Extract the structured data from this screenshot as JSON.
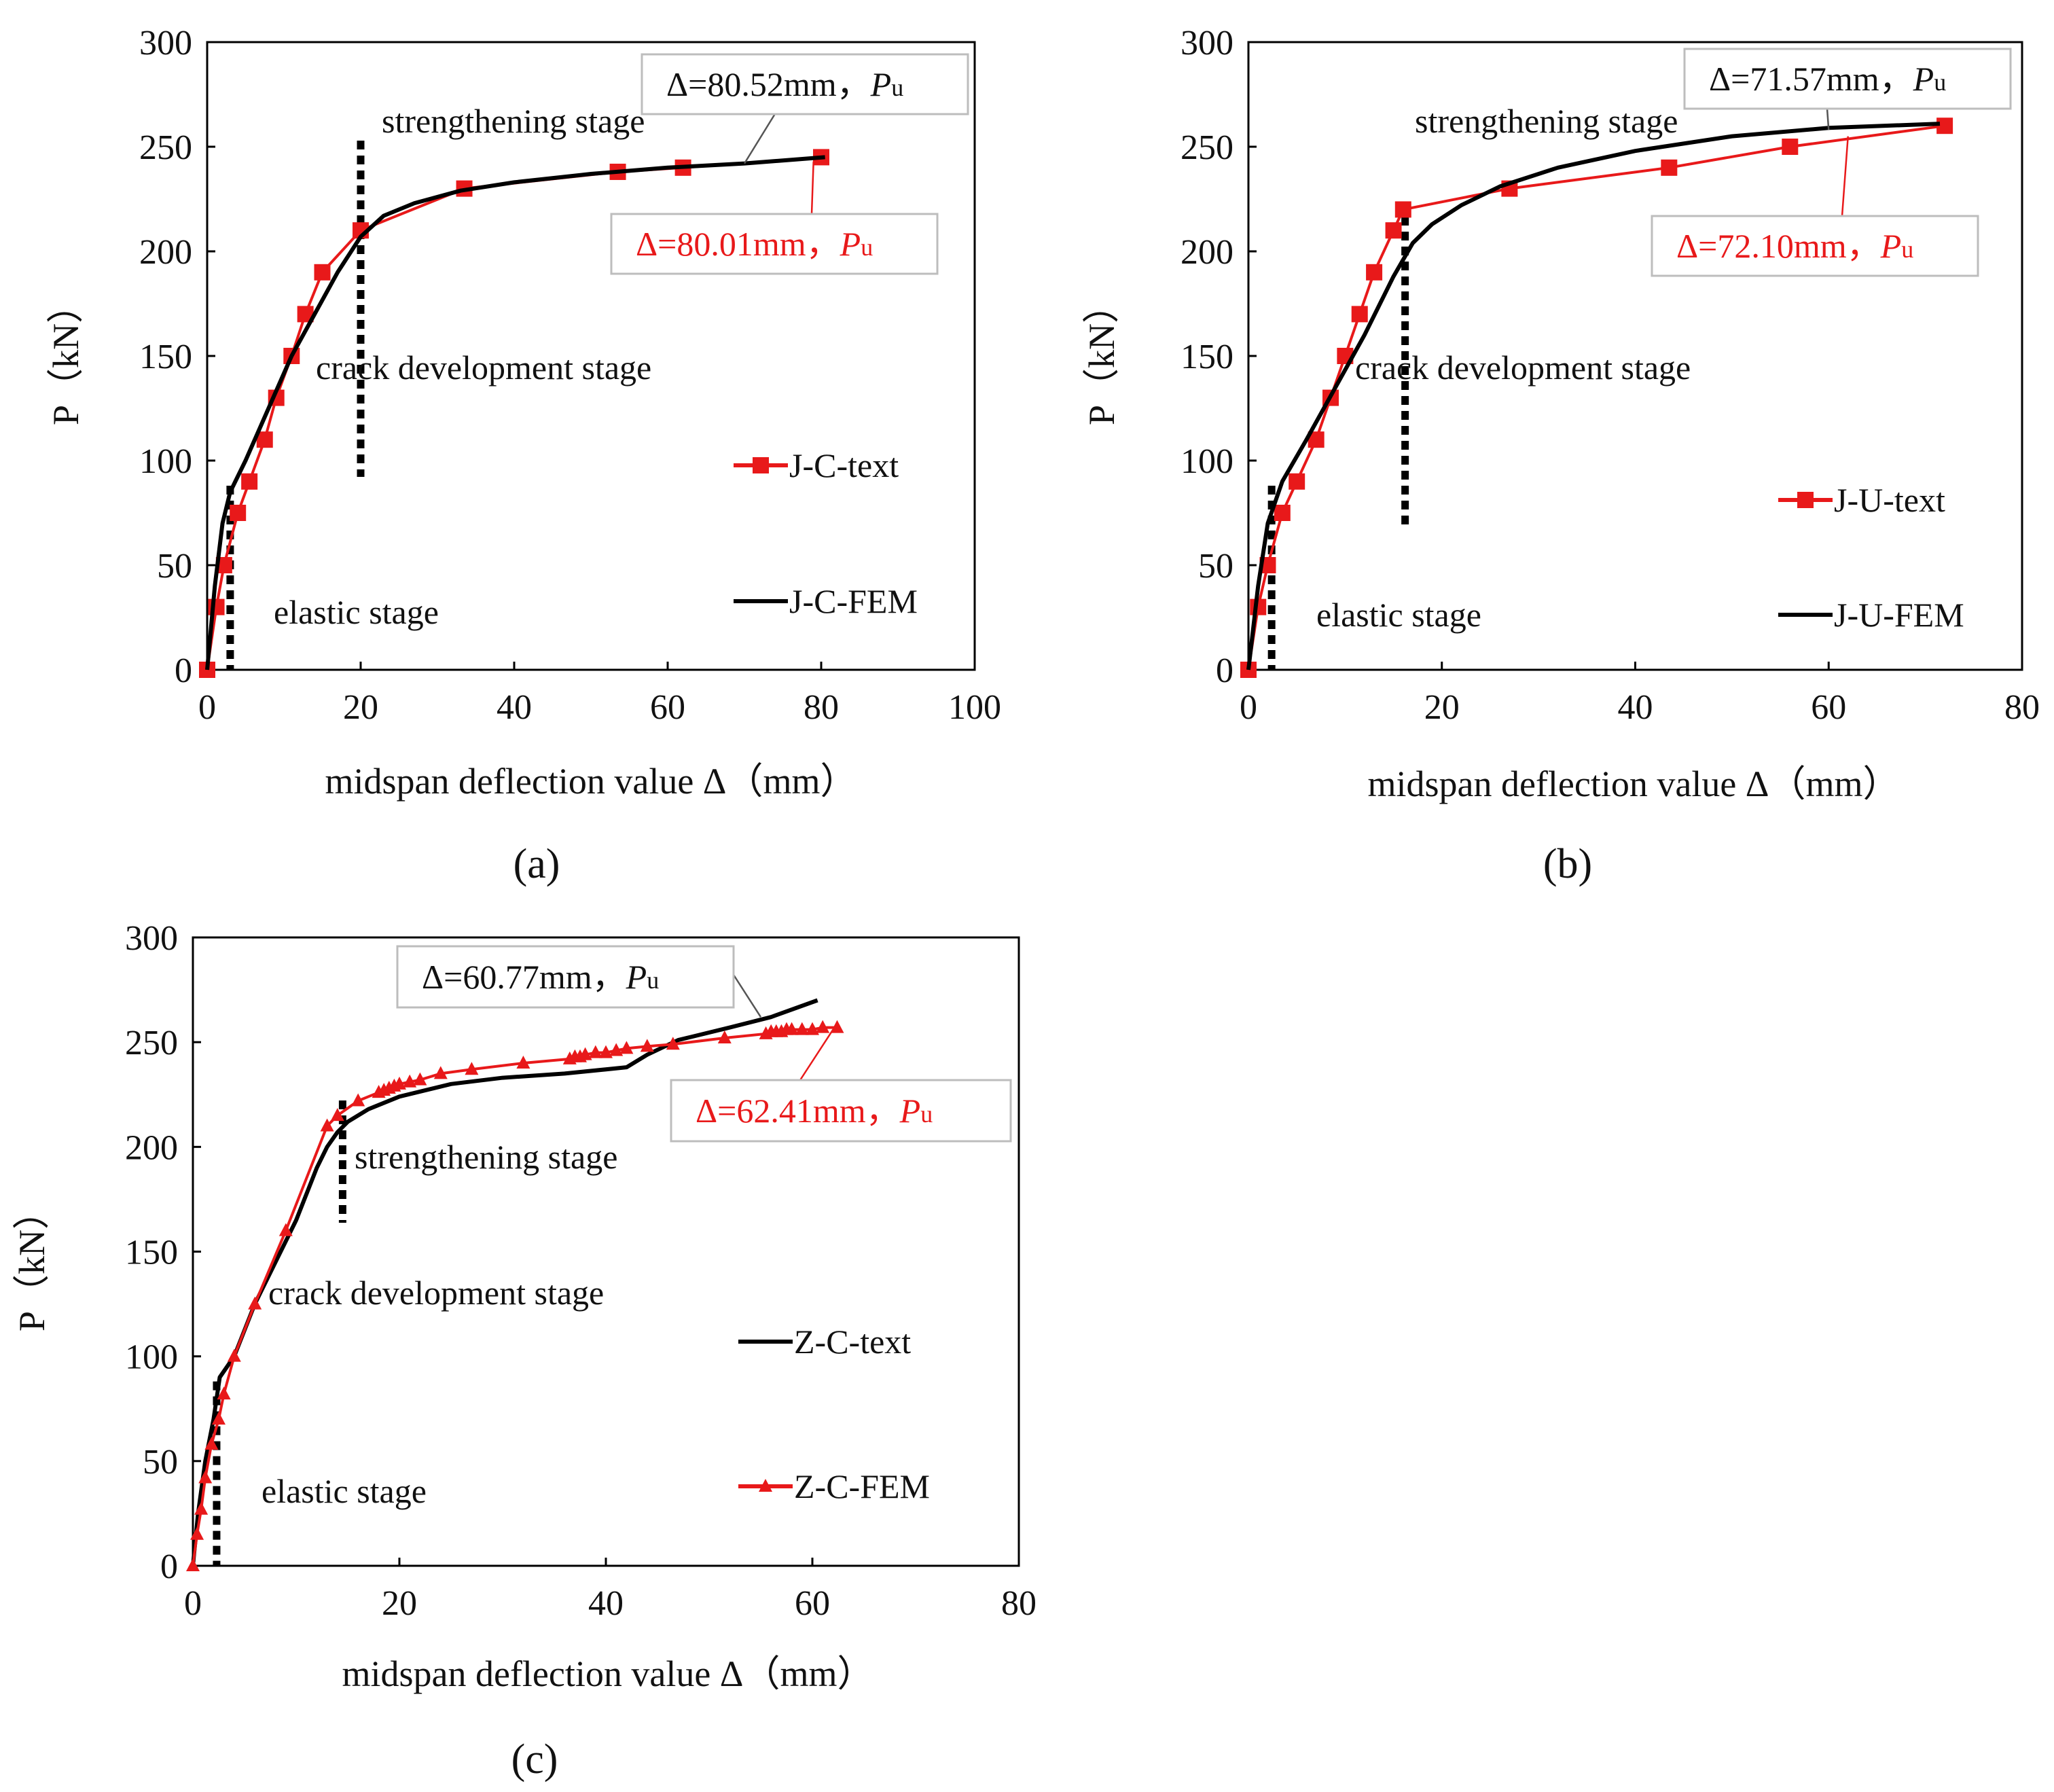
{
  "chart_data": [
    {
      "type": "line",
      "panel_label": "(a)",
      "xlabel": "midspan deflection value Δ（mm）",
      "ylabel": "P（kN）",
      "xlim": [
        0,
        100
      ],
      "ylim": [
        0,
        300
      ],
      "xticks": [
        "0",
        "20",
        "40",
        "60",
        "80",
        "100"
      ],
      "yticks": [
        "0",
        "50",
        "100",
        "150",
        "200",
        "250",
        "300"
      ],
      "series": [
        {
          "name": "J-C-text",
          "color": "#e8191a",
          "marker": "square",
          "x": [
            0,
            1.2,
            2.2,
            4.0,
            5.5,
            7.5,
            9.0,
            11.0,
            12.8,
            15.0,
            20.0,
            33.5,
            53.5,
            62.0,
            80.0
          ],
          "y": [
            0,
            30,
            50,
            75,
            90,
            110,
            130,
            150,
            170,
            190,
            210,
            230,
            238,
            240,
            245
          ]
        },
        {
          "name": "J-C-FEM",
          "color": "#000000",
          "marker": "none",
          "x": [
            0,
            1.0,
            2.0,
            3.0,
            5.0,
            8.0,
            11.0,
            14.0,
            17.0,
            20.0,
            23.0,
            27.0,
            33.0,
            40.0,
            50.0,
            60.0,
            70.0,
            80.5
          ],
          "y": [
            0,
            40,
            70,
            85,
            100,
            125,
            150,
            170,
            190,
            207,
            217,
            223,
            229,
            233,
            237,
            240,
            242,
            245
          ]
        }
      ],
      "stage_labels": [
        "strengthening stage",
        "crack development stage",
        "elastic  stage"
      ],
      "stage_dividers_x": [
        3.0,
        20.0
      ],
      "annotations": [
        {
          "text": "Δ=80.52mm，",
          "unit": "P",
          "sub": "u",
          "color": "#111111",
          "target": [
            70,
            242
          ]
        },
        {
          "text": "Δ=80.01mm，",
          "unit": "P",
          "sub": "u",
          "color": "#e8191a",
          "target": [
            79,
            243
          ]
        }
      ]
    },
    {
      "type": "line",
      "panel_label": "(b)",
      "xlabel": "midspan deflection value Δ（mm）",
      "ylabel": "P（kN）",
      "xlim": [
        0,
        80
      ],
      "ylim": [
        0,
        300
      ],
      "xticks": [
        "0",
        "20",
        "40",
        "60",
        "80"
      ],
      "yticks": [
        "0",
        "50",
        "100",
        "150",
        "200",
        "250",
        "300"
      ],
      "series": [
        {
          "name": "J-U-text",
          "color": "#e8191a",
          "marker": "square",
          "x": [
            0,
            1.0,
            2.0,
            3.5,
            5.0,
            7.0,
            8.5,
            10.0,
            11.5,
            13.0,
            15.0,
            16.0,
            27.0,
            43.5,
            56.0,
            72.0
          ],
          "y": [
            0,
            30,
            50,
            75,
            90,
            110,
            130,
            150,
            170,
            190,
            210,
            220,
            230,
            240,
            250,
            260
          ]
        },
        {
          "name": "J-U-FEM",
          "color": "#000000",
          "marker": "none",
          "x": [
            0,
            1.0,
            2.0,
            3.5,
            6.0,
            9.0,
            12.0,
            15.0,
            17.0,
            19.0,
            22.0,
            26.0,
            32.0,
            40.0,
            50.0,
            60.0,
            71.5
          ],
          "y": [
            0,
            40,
            70,
            90,
            110,
            135,
            160,
            188,
            204,
            213,
            222,
            231,
            240,
            248,
            255,
            259,
            261
          ]
        }
      ],
      "stage_labels": [
        "strengthening stage",
        "crack development stage",
        "elastic  stage"
      ],
      "stage_dividers_x": [
        2.4,
        16.2
      ],
      "annotations": [
        {
          "text": "Δ=71.57mm，",
          "unit": "P",
          "sub": "u",
          "color": "#111111",
          "target": [
            60,
            258
          ]
        },
        {
          "text": "Δ=72.10mm，",
          "unit": "P",
          "sub": "u",
          "color": "#e8191a",
          "target": [
            62,
            255
          ]
        }
      ]
    },
    {
      "type": "line",
      "panel_label": "(c)",
      "xlabel": "midspan deflection value Δ（mm）",
      "ylabel": "P（kN）",
      "xlim": [
        0,
        80
      ],
      "ylim": [
        0,
        300
      ],
      "xticks": [
        "0",
        "20",
        "40",
        "60",
        "80"
      ],
      "yticks": [
        "0",
        "50",
        "100",
        "150",
        "200",
        "250",
        "300"
      ],
      "series": [
        {
          "name": "Z-C-text",
          "color": "#000000",
          "marker": "none",
          "x": [
            0,
            0.5,
            1.2,
            2.0,
            2.6,
            4.0,
            6.0,
            8.0,
            10.0,
            12.0,
            13.0,
            14.0,
            15.0,
            17.0,
            20.0,
            25.0,
            30.0,
            36.0,
            42.0,
            44.0,
            47.0,
            52.0,
            56.0,
            60.5
          ],
          "y": [
            0,
            25,
            50,
            70,
            90,
            100,
            125,
            145,
            165,
            190,
            200,
            207,
            212,
            218,
            224,
            230,
            233,
            235,
            238,
            244,
            251,
            257,
            262,
            270
          ]
        },
        {
          "name": "Z-C-FEM",
          "color": "#e8191a",
          "marker": "triangle",
          "x": [
            0,
            0.4,
            0.8,
            1.2,
            1.8,
            2.5,
            3.0,
            4.0,
            6.0,
            9.0,
            13.0,
            14.0,
            16.0,
            18.0,
            18.5,
            19.0,
            19.5,
            20.0,
            21.0,
            22.0,
            24.0,
            27.0,
            32.0,
            36.5,
            37.0,
            37.5,
            38.0,
            39.0,
            40.0,
            41.0,
            42.0,
            44.0,
            46.5,
            51.5,
            55.5,
            56.0,
            56.5,
            57.0,
            57.5,
            58.0,
            59.0,
            60.0,
            61.0,
            62.4
          ],
          "y": [
            0,
            15,
            27,
            42,
            58,
            70,
            82,
            100,
            125,
            160,
            210,
            215,
            222,
            226,
            227,
            228,
            229,
            230,
            231,
            232,
            235,
            237,
            240,
            242,
            243,
            243,
            244,
            245,
            245,
            246,
            247,
            248,
            249,
            252,
            254,
            255,
            255,
            255,
            256,
            256,
            256,
            256,
            257,
            257
          ]
        }
      ],
      "stage_labels": [
        "strengthening stage",
        "crack development stage",
        "elastic  stage"
      ],
      "stage_dividers_x": [
        2.3,
        14.5
      ],
      "annotations": [
        {
          "text": "Δ=60.77mm，",
          "unit": "P",
          "sub": "u",
          "color": "#111111",
          "target": [
            55,
            262
          ]
        },
        {
          "text": "Δ=62.41mm，",
          "unit": "P",
          "sub": "u",
          "color": "#e8191a",
          "target": [
            62,
            256
          ]
        }
      ]
    }
  ]
}
